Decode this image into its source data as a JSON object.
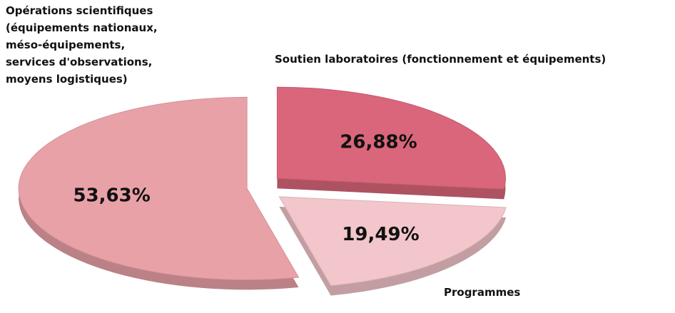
{
  "chart_data": {
    "type": "pie",
    "categories": [
      "Soutien laboratoires (fonctionnement et équipements)",
      "Programmes",
      "Opérations scientifiques\n(équipements nationaux,\nméso-équipements,\nservices d'observations,\nmoyens logistiques)"
    ],
    "values": [
      26.88,
      19.49,
      53.63
    ],
    "value_labels": [
      "26,88%",
      "19,49%",
      "53,63%"
    ],
    "colors": [
      "#d9667a",
      "#f2c6ca",
      "#e9a1a8"
    ]
  }
}
